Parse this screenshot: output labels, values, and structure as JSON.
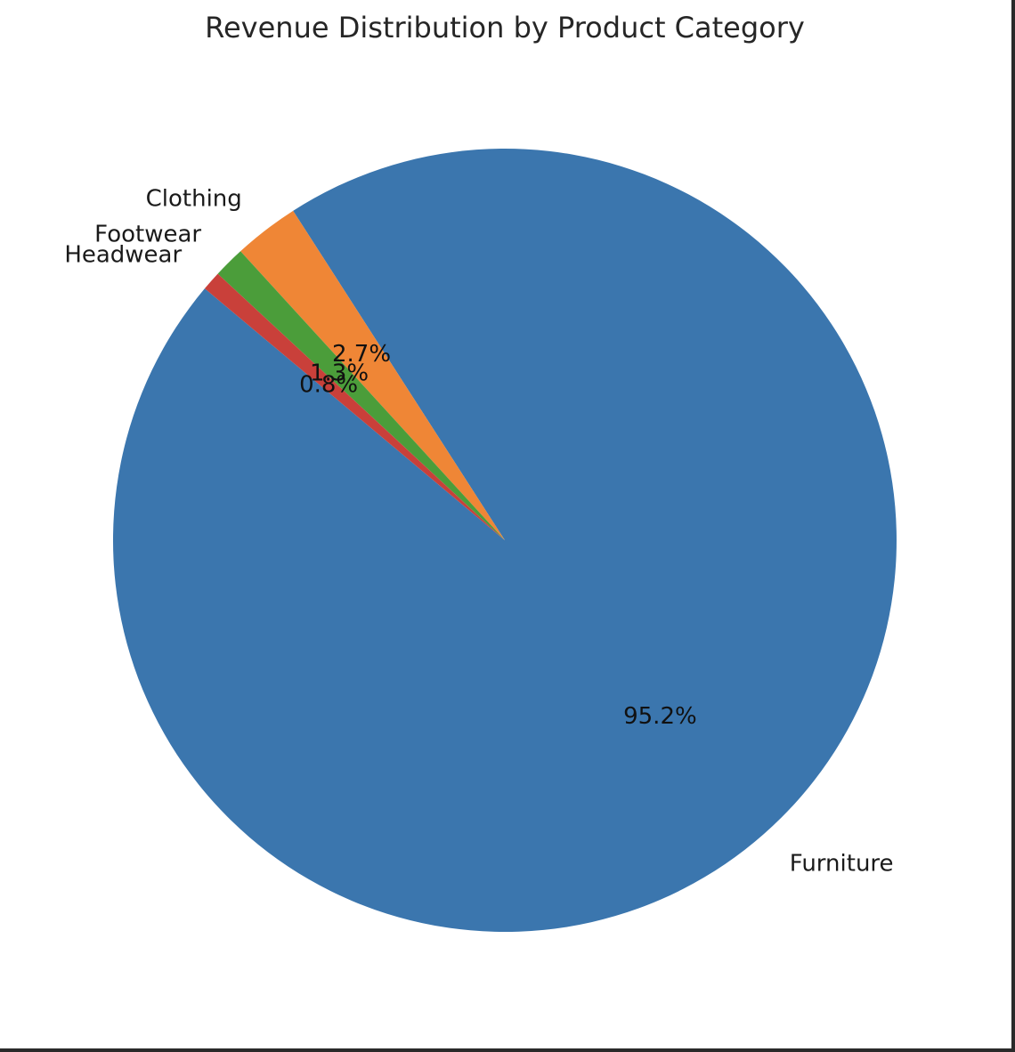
{
  "chart_data": {
    "type": "pie",
    "title": "Revenue Distribution by Product Category",
    "categories": [
      "Furniture",
      "Clothing",
      "Footwear",
      "Headwear"
    ],
    "values": [
      95.2,
      2.7,
      1.3,
      0.8
    ],
    "value_labels": [
      "95.2%",
      "2.7%",
      "1.3%",
      "0.8%"
    ],
    "colors": [
      "#3b76ae",
      "#ef8636",
      "#4b9d3a",
      "#c9403a"
    ],
    "start_angle_deg": 140,
    "direction": "counterclockwise",
    "legend": "none"
  }
}
